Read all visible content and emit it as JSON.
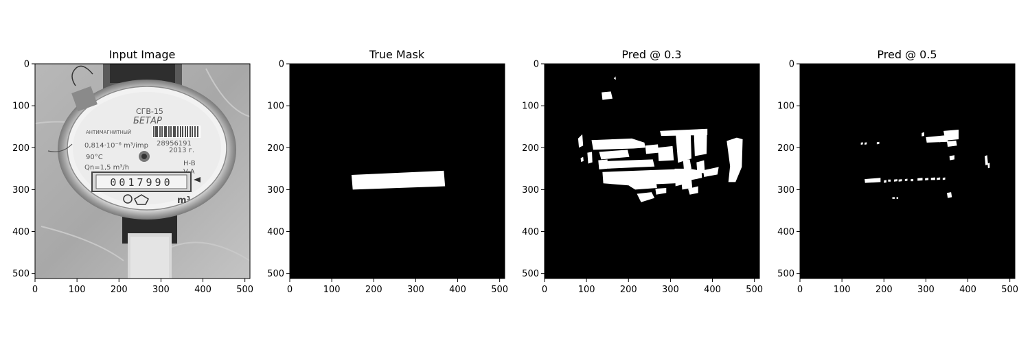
{
  "figure": {
    "background": "#ffffff"
  },
  "chart_data": [
    {
      "type": "image",
      "title": "Input Image",
      "content": "grayscale photo of water meter",
      "xlim": [
        0,
        512
      ],
      "ylim": [
        512,
        0
      ],
      "xticks": [
        0,
        100,
        200,
        300,
        400,
        500
      ],
      "yticks": [
        0,
        100,
        200,
        300,
        400,
        500
      ],
      "meter_text": {
        "model": "СГВ-15",
        "brand": "БЕТАР",
        "antimagnetic": "АНТИМАГНИТНЫЙ",
        "pulse": "0,814·10⁻⁶ m³/imp",
        "serial": "28956191",
        "year": "2013 г.",
        "temp": "90°C",
        "flow": "Qn=1,5 m³/h",
        "class_h": "H-B",
        "class_v": "V-A",
        "reading": "0017990",
        "unit": "m³"
      }
    },
    {
      "type": "mask",
      "title": "True Mask",
      "xlim": [
        0,
        512
      ],
      "ylim": [
        512,
        0
      ],
      "xticks": [
        0,
        100,
        200,
        300,
        400,
        500
      ],
      "yticks": [
        0,
        100,
        200,
        300,
        400,
        500
      ],
      "regions": [
        {
          "polygon": [
            [
              147,
              265
            ],
            [
              367,
              255
            ],
            [
              370,
              292
            ],
            [
              150,
              300
            ]
          ]
        }
      ]
    },
    {
      "type": "mask",
      "title": "Pred @ 0.3",
      "xlim": [
        0,
        512
      ],
      "ylim": [
        512,
        0
      ],
      "xticks": [
        0,
        100,
        200,
        300,
        400,
        500
      ],
      "yticks": [
        0,
        100,
        200,
        300,
        400,
        500
      ],
      "regions": [
        {
          "polygon": [
            [
              136,
              68
            ],
            [
              158,
              66
            ],
            [
              162,
              83
            ],
            [
              138,
              86
            ]
          ]
        },
        {
          "polygon": [
            [
              165,
              35
            ],
            [
              169,
              30
            ],
            [
              170,
              38
            ]
          ]
        },
        {
          "polygon": [
            [
              80,
              178
            ],
            [
              90,
              168
            ],
            [
              92,
              195
            ],
            [
              82,
              200
            ]
          ]
        },
        {
          "polygon": [
            [
              112,
              182
            ],
            [
              208,
              178
            ],
            [
              238,
              188
            ],
            [
              240,
              200
            ],
            [
              212,
              202
            ],
            [
              116,
              205
            ]
          ]
        },
        {
          "polygon": [
            [
              102,
              212
            ],
            [
              113,
              210
            ],
            [
              114,
              235
            ],
            [
              104,
              238
            ]
          ]
        },
        {
          "polygon": [
            [
              130,
              210
            ],
            [
              198,
              205
            ],
            [
              202,
              222
            ],
            [
              135,
              228
            ]
          ]
        },
        {
          "polygon": [
            [
              128,
              230
            ],
            [
              150,
              228
            ],
            [
              150,
              250
            ],
            [
              130,
              252
            ]
          ]
        },
        {
          "polygon": [
            [
              148,
              232
            ],
            [
              258,
              228
            ],
            [
              262,
              245
            ],
            [
              150,
              250
            ]
          ]
        },
        {
          "polygon": [
            [
              240,
              195
            ],
            [
              270,
              192
            ],
            [
              272,
              212
            ],
            [
              242,
              215
            ]
          ]
        },
        {
          "polygon": [
            [
              270,
              200
            ],
            [
              305,
              196
            ],
            [
              308,
              230
            ],
            [
              272,
              232
            ]
          ]
        },
        {
          "polygon": [
            [
              275,
              160
            ],
            [
              388,
              155
            ],
            [
              388,
              170
            ],
            [
              278,
              172
            ]
          ]
        },
        {
          "polygon": [
            [
              312,
              162
            ],
            [
              348,
              160
            ],
            [
              350,
              226
            ],
            [
              318,
              236
            ]
          ]
        },
        {
          "polygon": [
            [
              356,
              168
            ],
            [
              387,
              165
            ],
            [
              386,
              215
            ],
            [
              358,
              220
            ]
          ]
        },
        {
          "polygon": [
            [
              330,
              230
            ],
            [
              346,
              228
            ],
            [
              350,
              250
            ],
            [
              332,
              252
            ]
          ]
        },
        {
          "polygon": [
            [
              138,
              258
            ],
            [
              345,
              250
            ],
            [
              374,
              255
            ],
            [
              375,
              272
            ],
            [
              310,
              285
            ],
            [
              200,
              290
            ],
            [
              140,
              285
            ]
          ]
        },
        {
          "polygon": [
            [
              362,
              235
            ],
            [
              380,
              230
            ],
            [
              382,
              260
            ],
            [
              364,
              262
            ]
          ]
        },
        {
          "polygon": [
            [
              310,
              250
            ],
            [
              336,
              250
            ],
            [
              336,
              286
            ],
            [
              312,
              292
            ]
          ]
        },
        {
          "polygon": [
            [
              326,
              278
            ],
            [
              350,
              275
            ],
            [
              352,
              296
            ],
            [
              328,
              300
            ]
          ]
        },
        {
          "polygon": [
            [
              378,
              254
            ],
            [
              415,
              246
            ],
            [
              412,
              264
            ],
            [
              380,
              270
            ]
          ]
        },
        {
          "polygon": [
            [
              434,
              184
            ],
            [
              458,
              176
            ],
            [
              472,
              180
            ],
            [
              470,
              246
            ],
            [
              455,
              282
            ],
            [
              438,
              282
            ],
            [
              442,
              244
            ]
          ]
        },
        {
          "polygon": [
            [
              200,
              290
            ],
            [
              266,
              282
            ],
            [
              268,
              296
            ],
            [
              216,
              300
            ]
          ]
        },
        {
          "polygon": [
            [
              220,
              310
            ],
            [
              255,
              306
            ],
            [
              262,
              320
            ],
            [
              230,
              330
            ]
          ]
        },
        {
          "polygon": [
            [
              264,
              298
            ],
            [
              290,
              296
            ],
            [
              290,
              308
            ],
            [
              266,
              312
            ]
          ]
        },
        {
          "polygon": [
            [
              342,
              298
            ],
            [
              366,
              292
            ],
            [
              366,
              308
            ],
            [
              346,
              312
            ]
          ]
        },
        {
          "polygon": [
            [
              86,
              225
            ],
            [
              92,
              222
            ],
            [
              93,
              232
            ],
            [
              87,
              234
            ]
          ]
        }
      ]
    },
    {
      "type": "mask",
      "title": "Pred @ 0.5",
      "xlim": [
        0,
        512
      ],
      "ylim": [
        512,
        0
      ],
      "xticks": [
        0,
        100,
        200,
        300,
        400,
        500
      ],
      "yticks": [
        0,
        100,
        200,
        300,
        400,
        500
      ],
      "regions": [
        {
          "polygon": [
            [
              290,
              165
            ],
            [
              296,
              163
            ],
            [
              296,
              172
            ],
            [
              290,
              173
            ]
          ]
        },
        {
          "polygon": [
            [
              300,
              175
            ],
            [
              352,
              170
            ],
            [
              352,
              186
            ],
            [
              302,
              188
            ]
          ]
        },
        {
          "polygon": [
            [
              342,
              160
            ],
            [
              378,
              157
            ],
            [
              378,
              180
            ],
            [
              346,
              183
            ]
          ]
        },
        {
          "polygon": [
            [
              350,
              185
            ],
            [
              372,
              183
            ],
            [
              374,
              195
            ],
            [
              352,
              198
            ]
          ]
        },
        {
          "polygon": [
            [
              330,
              175
            ],
            [
              340,
              172
            ],
            [
              342,
              185
            ],
            [
              332,
              187
            ]
          ]
        },
        {
          "polygon": [
            [
              145,
              188
            ],
            [
              150,
              187
            ],
            [
              150,
              192
            ],
            [
              145,
              193
            ]
          ]
        },
        {
          "polygon": [
            [
              154,
              188
            ],
            [
              159,
              187
            ],
            [
              159,
              192
            ],
            [
              154,
              193
            ]
          ]
        },
        {
          "polygon": [
            [
              183,
              187
            ],
            [
              189,
              186
            ],
            [
              189,
              191
            ],
            [
              183,
              192
            ]
          ]
        },
        {
          "polygon": [
            [
              356,
              220
            ],
            [
              368,
              218
            ],
            [
              368,
              228
            ],
            [
              357,
              230
            ]
          ]
        },
        {
          "polygon": [
            [
              440,
              220
            ],
            [
              446,
              218
            ],
            [
              448,
              240
            ],
            [
              442,
              242
            ]
          ]
        },
        {
          "polygon": [
            [
              447,
              238
            ],
            [
              452,
              236
            ],
            [
              452,
              248
            ],
            [
              448,
              249
            ]
          ]
        },
        {
          "polygon": [
            [
              154,
              275
            ],
            [
              192,
              272
            ],
            [
              192,
              282
            ],
            [
              155,
              284
            ]
          ]
        },
        {
          "polygon": [
            [
              200,
              278
            ],
            [
              206,
              277
            ],
            [
              206,
              283
            ],
            [
              200,
              284
            ]
          ]
        },
        {
          "polygon": [
            [
              210,
              276
            ],
            [
              216,
              276
            ],
            [
              216,
              281
            ],
            [
              210,
              281
            ]
          ]
        },
        {
          "polygon": [
            [
              224,
              276
            ],
            [
              232,
              275
            ],
            [
              232,
              280
            ],
            [
              224,
              281
            ]
          ]
        },
        {
          "polygon": [
            [
              235,
              276
            ],
            [
              243,
              275
            ],
            [
              243,
              280
            ],
            [
              235,
              281
            ]
          ]
        },
        {
          "polygon": [
            [
              250,
              275
            ],
            [
              256,
              274
            ],
            [
              256,
              279
            ],
            [
              250,
              280
            ]
          ]
        },
        {
          "polygon": [
            [
              264,
              275
            ],
            [
              270,
              275
            ],
            [
              270,
              280
            ],
            [
              264,
              280
            ]
          ]
        },
        {
          "polygon": [
            [
              280,
              273
            ],
            [
              292,
              272
            ],
            [
              292,
              278
            ],
            [
              280,
              279
            ]
          ]
        },
        {
          "polygon": [
            [
              298,
              273
            ],
            [
              306,
              272
            ],
            [
              306,
              277
            ],
            [
              298,
              278
            ]
          ]
        },
        {
          "polygon": [
            [
              312,
              272
            ],
            [
              322,
              271
            ],
            [
              322,
              277
            ],
            [
              312,
              277
            ]
          ]
        },
        {
          "polygon": [
            [
              326,
              272
            ],
            [
              334,
              271
            ],
            [
              334,
              276
            ],
            [
              326,
              277
            ]
          ]
        },
        {
          "polygon": [
            [
              340,
              272
            ],
            [
              346,
              271
            ],
            [
              346,
              276
            ],
            [
              340,
              277
            ]
          ]
        },
        {
          "polygon": [
            [
              350,
              308
            ],
            [
              360,
              306
            ],
            [
              362,
              318
            ],
            [
              352,
              320
            ]
          ]
        },
        {
          "polygon": [
            [
              220,
              318
            ],
            [
              226,
              318
            ],
            [
              226,
              322
            ],
            [
              220,
              322
            ]
          ]
        },
        {
          "polygon": [
            [
              230,
              318
            ],
            [
              234,
              318
            ],
            [
              234,
              322
            ],
            [
              230,
              322
            ]
          ]
        }
      ]
    }
  ]
}
